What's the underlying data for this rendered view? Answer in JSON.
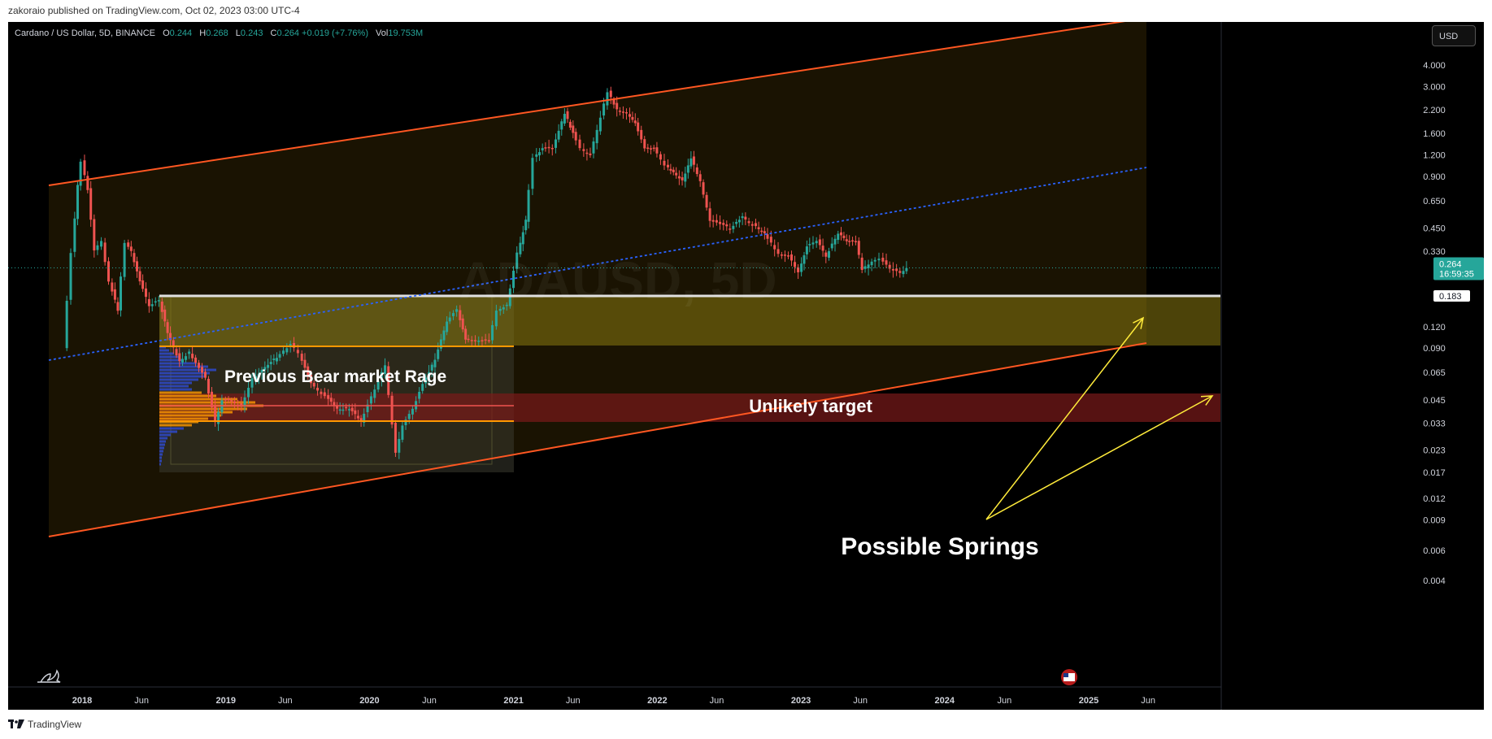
{
  "header": {
    "published": "zakoraio published on TradingView.com, Oct 02, 2023 03:00 UTC-4"
  },
  "footer": {
    "brand": "TradingView"
  },
  "legend": {
    "symbol": "Cardano / US Dollar, 5D, BINANCE",
    "o_label": "O",
    "o": "0.244",
    "h_label": "H",
    "h": "0.268",
    "l_label": "L",
    "l": "0.243",
    "c_label": "C",
    "c": "0.264 +0.019 (+7.76%)",
    "vol_label": "Vol",
    "vol": "19.753M"
  },
  "currency_button": "USD",
  "price_tags": {
    "last": "0.264",
    "countdown": "16:59:35",
    "level": "0.183"
  },
  "watermark": "ADAUSD, 5D",
  "annotations": {
    "bear_range": "Previous Bear market Rage",
    "unlikely": "Unlikely target",
    "springs": "Possible Springs"
  },
  "colors": {
    "background": "#000000",
    "up": "#26a69a",
    "down": "#ef5350",
    "channel": "#ff5722",
    "midline": "#2962ff",
    "zone_yellow": "#8a7a10",
    "zone_red": "#7a1a1a",
    "arrow": "#ffeb3b",
    "level_orange": "#ff9800"
  },
  "chart_data": {
    "type": "line",
    "title": "Cardano / US Dollar, 5D, BINANCE",
    "y_scale": "log",
    "ylim": [
      0.004,
      5.0
    ],
    "xlim": [
      "2017-10-01",
      "2025-10-31"
    ],
    "y_ticks": [
      "4.000",
      "3.000",
      "2.200",
      "1.600",
      "1.200",
      "0.900",
      "0.650",
      "0.450",
      "0.330",
      "0.120",
      "0.090",
      "0.065",
      "0.045",
      "0.033",
      "0.023",
      "0.017",
      "0.012",
      "0.009",
      "0.006",
      "0.004"
    ],
    "x_ticks": [
      {
        "label": "2018",
        "date": "2018-01-01"
      },
      {
        "label": "Jun",
        "date": "2018-06-01"
      },
      {
        "label": "2019",
        "date": "2019-01-01"
      },
      {
        "label": "Jun",
        "date": "2019-06-01"
      },
      {
        "label": "2020",
        "date": "2020-01-01"
      },
      {
        "label": "Jun",
        "date": "2020-06-01"
      },
      {
        "label": "2021",
        "date": "2021-01-01"
      },
      {
        "label": "Jun",
        "date": "2021-06-01"
      },
      {
        "label": "2022",
        "date": "2022-01-01"
      },
      {
        "label": "Jun",
        "date": "2022-06-01"
      },
      {
        "label": "2023",
        "date": "2023-01-01"
      },
      {
        "label": "Jun",
        "date": "2023-06-01"
      },
      {
        "label": "2024",
        "date": "2024-01-01"
      },
      {
        "label": "Jun",
        "date": "2024-06-01"
      },
      {
        "label": "2025",
        "date": "2025-01-01"
      },
      {
        "label": "Jun",
        "date": "2025-06-01"
      }
    ],
    "series": [
      {
        "values": [
          [
            "2017-11-20",
            0.09
          ],
          [
            "2017-12-10",
            0.32
          ],
          [
            "2017-12-25",
            0.8
          ],
          [
            "2018-01-04",
            1.1
          ],
          [
            "2018-01-20",
            0.75
          ],
          [
            "2018-02-06",
            0.33
          ],
          [
            "2018-02-25",
            0.38
          ],
          [
            "2018-03-15",
            0.22
          ],
          [
            "2018-04-06",
            0.15
          ],
          [
            "2018-04-25",
            0.37
          ],
          [
            "2018-05-10",
            0.33
          ],
          [
            "2018-06-01",
            0.22
          ],
          [
            "2018-06-25",
            0.16
          ],
          [
            "2018-07-20",
            0.17
          ],
          [
            "2018-08-10",
            0.11
          ],
          [
            "2018-09-10",
            0.075
          ],
          [
            "2018-10-05",
            0.085
          ],
          [
            "2018-11-15",
            0.06
          ],
          [
            "2018-12-10",
            0.033
          ],
          [
            "2018-12-28",
            0.045
          ],
          [
            "2019-01-20",
            0.044
          ],
          [
            "2019-02-15",
            0.041
          ],
          [
            "2019-03-15",
            0.06
          ],
          [
            "2019-04-15",
            0.07
          ],
          [
            "2019-05-15",
            0.08
          ],
          [
            "2019-06-20",
            0.095
          ],
          [
            "2019-07-10",
            0.085
          ],
          [
            "2019-08-10",
            0.056
          ],
          [
            "2019-09-15",
            0.047
          ],
          [
            "2019-10-15",
            0.04
          ],
          [
            "2019-11-15",
            0.04
          ],
          [
            "2019-12-15",
            0.034
          ],
          [
            "2020-01-20",
            0.052
          ],
          [
            "2020-02-15",
            0.072
          ],
          [
            "2020-03-13",
            0.022
          ],
          [
            "2020-03-30",
            0.032
          ],
          [
            "2020-04-25",
            0.04
          ],
          [
            "2020-05-20",
            0.055
          ],
          [
            "2020-06-20",
            0.078
          ],
          [
            "2020-07-20",
            0.13
          ],
          [
            "2020-08-15",
            0.15
          ],
          [
            "2020-09-05",
            0.1
          ],
          [
            "2020-10-10",
            0.1
          ],
          [
            "2020-11-05",
            0.1
          ],
          [
            "2020-11-25",
            0.15
          ],
          [
            "2020-12-20",
            0.16
          ],
          [
            "2021-01-15",
            0.32
          ],
          [
            "2021-02-05",
            0.5
          ],
          [
            "2021-02-25",
            1.15
          ],
          [
            "2021-03-20",
            1.3
          ],
          [
            "2021-04-15",
            1.3
          ],
          [
            "2021-05-15",
            2.1
          ],
          [
            "2021-06-05",
            1.6
          ],
          [
            "2021-06-25",
            1.3
          ],
          [
            "2021-07-20",
            1.2
          ],
          [
            "2021-08-15",
            2.0
          ],
          [
            "2021-09-02",
            2.8
          ],
          [
            "2021-09-25",
            2.2
          ],
          [
            "2021-10-20",
            2.1
          ],
          [
            "2021-11-10",
            1.85
          ],
          [
            "2021-12-05",
            1.3
          ],
          [
            "2021-12-28",
            1.3
          ],
          [
            "2022-01-25",
            1.05
          ],
          [
            "2022-02-15",
            0.95
          ],
          [
            "2022-03-10",
            0.85
          ],
          [
            "2022-04-01",
            1.15
          ],
          [
            "2022-04-25",
            0.85
          ],
          [
            "2022-05-20",
            0.5
          ],
          [
            "2022-06-15",
            0.47
          ],
          [
            "2022-07-10",
            0.45
          ],
          [
            "2022-08-10",
            0.52
          ],
          [
            "2022-09-05",
            0.47
          ],
          [
            "2022-10-05",
            0.42
          ],
          [
            "2022-11-10",
            0.32
          ],
          [
            "2022-12-05",
            0.31
          ],
          [
            "2022-12-30",
            0.25
          ],
          [
            "2023-01-20",
            0.35
          ],
          [
            "2023-02-15",
            0.38
          ],
          [
            "2023-03-10",
            0.31
          ],
          [
            "2023-04-10",
            0.42
          ],
          [
            "2023-05-01",
            0.38
          ],
          [
            "2023-05-25",
            0.37
          ],
          [
            "2023-06-10",
            0.26
          ],
          [
            "2023-07-05",
            0.29
          ],
          [
            "2023-07-25",
            0.3
          ],
          [
            "2023-08-20",
            0.26
          ],
          [
            "2023-09-15",
            0.245
          ],
          [
            "2023-10-01",
            0.264
          ]
        ]
      }
    ]
  }
}
